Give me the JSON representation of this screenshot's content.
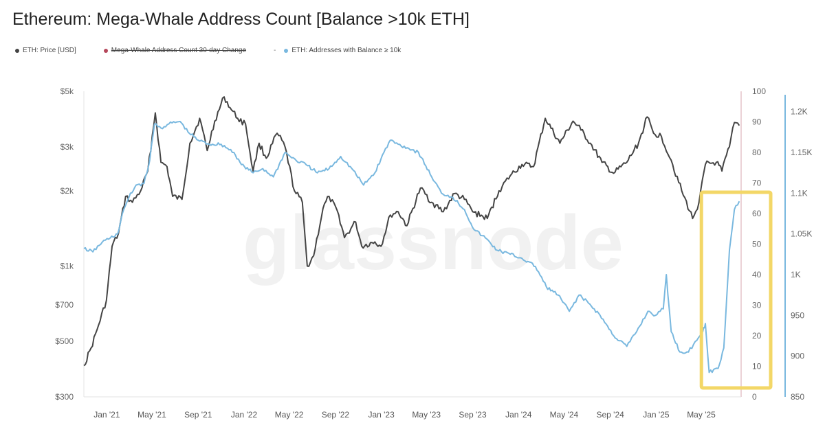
{
  "title": "Ethereum: Mega-Whale Address Count [Balance >10k ETH]",
  "legend": [
    {
      "label": "ETH: Price [USD]",
      "color": "#444444",
      "struck": false,
      "marker": "dot"
    },
    {
      "label": "Mega-Whale Address Count 30-day Change",
      "color": "#b5475b",
      "struck": true,
      "marker": "dot"
    },
    {
      "label": "ETH: Addresses with Balance ≥ 10k",
      "color": "#79b8df",
      "struck": false,
      "marker": "dash-dot"
    }
  ],
  "watermark": "glassnode",
  "chart_data": {
    "type": "line",
    "title": "Ethereum: Mega-Whale Address Count [Balance >10k ETH]",
    "x_ticks": [
      "Jan '21",
      "May '21",
      "Sep '21",
      "Jan '22",
      "May '22",
      "Sep '22",
      "Jan '23",
      "May '23",
      "Sep '23",
      "Jan '24",
      "May '24",
      "Sep '24",
      "Jan '25",
      "May '25"
    ],
    "left_axis": {
      "scale": "log",
      "ticks": [
        "$5k",
        "$3k",
        "$2k",
        "$1k",
        "$700",
        "$500",
        "$300"
      ],
      "tick_values": [
        5000,
        3000,
        2000,
        1000,
        700,
        500,
        300
      ],
      "range": [
        300,
        5000
      ]
    },
    "middle_axis": {
      "scale": "linear",
      "ticks": [
        "100",
        "90",
        "80",
        "70",
        "60",
        "50",
        "40",
        "30",
        "20",
        "10",
        "0"
      ],
      "range": [
        0,
        100
      ]
    },
    "right_axis": {
      "scale": "linear",
      "ticks": [
        "1.2K",
        "1.15K",
        "1.1K",
        "1.05K",
        "1K",
        "950",
        "900",
        "850"
      ],
      "tick_values": [
        1200,
        1150,
        1100,
        1050,
        1000,
        950,
        900,
        850
      ],
      "range": [
        850,
        1225
      ]
    },
    "x_range": [
      "2020-11-01",
      "2025-08-15"
    ],
    "series": [
      {
        "name": "ETH: Price [USD]",
        "axis": "left",
        "color": "#444444",
        "points": [
          [
            "2020-11-01",
            400
          ],
          [
            "2020-11-20",
            470
          ],
          [
            "2020-12-10",
            580
          ],
          [
            "2020-12-31",
            730
          ],
          [
            "2021-01-15",
            1200
          ],
          [
            "2021-02-01",
            1350
          ],
          [
            "2021-02-20",
            1900
          ],
          [
            "2021-03-10",
            1800
          ],
          [
            "2021-04-01",
            2000
          ],
          [
            "2021-04-20",
            2400
          ],
          [
            "2021-05-10",
            4100
          ],
          [
            "2021-05-25",
            2600
          ],
          [
            "2021-06-10",
            2500
          ],
          [
            "2021-06-25",
            1900
          ],
          [
            "2021-07-20",
            1850
          ],
          [
            "2021-08-10",
            3100
          ],
          [
            "2021-09-05",
            3900
          ],
          [
            "2021-09-25",
            2900
          ],
          [
            "2021-10-15",
            3800
          ],
          [
            "2021-11-09",
            4750
          ],
          [
            "2021-11-25",
            4300
          ],
          [
            "2021-12-15",
            3900
          ],
          [
            "2022-01-05",
            3700
          ],
          [
            "2022-01-25",
            2400
          ],
          [
            "2022-02-10",
            3100
          ],
          [
            "2022-03-01",
            2700
          ],
          [
            "2022-03-30",
            3400
          ],
          [
            "2022-04-20",
            3000
          ],
          [
            "2022-05-15",
            2000
          ],
          [
            "2022-06-05",
            1800
          ],
          [
            "2022-06-18",
            1000
          ],
          [
            "2022-07-05",
            1100
          ],
          [
            "2022-07-30",
            1700
          ],
          [
            "2022-08-15",
            1900
          ],
          [
            "2022-09-10",
            1600
          ],
          [
            "2022-09-25",
            1300
          ],
          [
            "2022-10-25",
            1500
          ],
          [
            "2022-11-10",
            1200
          ],
          [
            "2022-12-15",
            1250
          ],
          [
            "2022-12-31",
            1200
          ],
          [
            "2023-01-25",
            1600
          ],
          [
            "2023-02-15",
            1650
          ],
          [
            "2023-03-10",
            1450
          ],
          [
            "2023-04-15",
            2050
          ],
          [
            "2023-05-15",
            1800
          ],
          [
            "2023-06-15",
            1650
          ],
          [
            "2023-07-15",
            1950
          ],
          [
            "2023-08-10",
            1850
          ],
          [
            "2023-09-01",
            1650
          ],
          [
            "2023-10-10",
            1550
          ],
          [
            "2023-11-10",
            2000
          ],
          [
            "2023-12-10",
            2300
          ],
          [
            "2024-01-10",
            2550
          ],
          [
            "2024-02-10",
            2500
          ],
          [
            "2024-03-12",
            3900
          ],
          [
            "2024-04-20",
            3100
          ],
          [
            "2024-05-25",
            3800
          ],
          [
            "2024-06-15",
            3500
          ],
          [
            "2024-07-10",
            3100
          ],
          [
            "2024-08-10",
            2600
          ],
          [
            "2024-09-10",
            2350
          ],
          [
            "2024-10-15",
            2600
          ],
          [
            "2024-11-15",
            3100
          ],
          [
            "2024-12-08",
            3950
          ],
          [
            "2024-12-25",
            3400
          ],
          [
            "2025-01-15",
            3300
          ],
          [
            "2025-02-10",
            2650
          ],
          [
            "2025-03-10",
            2000
          ],
          [
            "2025-04-08",
            1550
          ],
          [
            "2025-04-25",
            1800
          ],
          [
            "2025-05-12",
            2550
          ],
          [
            "2025-06-10",
            2600
          ],
          [
            "2025-06-25",
            2400
          ],
          [
            "2025-07-15",
            3000
          ],
          [
            "2025-07-28",
            3750
          ],
          [
            "2025-08-10",
            3650
          ]
        ]
      },
      {
        "name": "ETH: Addresses with Balance ≥ 10k",
        "axis": "right",
        "color": "#79b8df",
        "points": [
          [
            "2020-11-01",
            1032
          ],
          [
            "2020-11-25",
            1028
          ],
          [
            "2020-12-20",
            1040
          ],
          [
            "2021-01-10",
            1045
          ],
          [
            "2021-01-30",
            1050
          ],
          [
            "2021-02-15",
            1080
          ],
          [
            "2021-03-01",
            1095
          ],
          [
            "2021-03-20",
            1110
          ],
          [
            "2021-04-10",
            1112
          ],
          [
            "2021-04-25",
            1140
          ],
          [
            "2021-05-08",
            1185
          ],
          [
            "2021-05-25",
            1180
          ],
          [
            "2021-06-15",
            1185
          ],
          [
            "2021-07-15",
            1188
          ],
          [
            "2021-08-05",
            1175
          ],
          [
            "2021-09-01",
            1165
          ],
          [
            "2021-10-01",
            1160
          ],
          [
            "2021-11-01",
            1160
          ],
          [
            "2021-12-05",
            1150
          ],
          [
            "2021-12-25",
            1135
          ],
          [
            "2022-01-25",
            1125
          ],
          [
            "2022-02-20",
            1130
          ],
          [
            "2022-03-20",
            1120
          ],
          [
            "2022-04-20",
            1150
          ],
          [
            "2022-05-20",
            1140
          ],
          [
            "2022-06-15",
            1135
          ],
          [
            "2022-07-15",
            1125
          ],
          [
            "2022-08-15",
            1130
          ],
          [
            "2022-09-15",
            1145
          ],
          [
            "2022-10-15",
            1130
          ],
          [
            "2022-11-15",
            1110
          ],
          [
            "2022-12-15",
            1125
          ],
          [
            "2023-01-08",
            1150
          ],
          [
            "2023-01-25",
            1165
          ],
          [
            "2023-02-15",
            1160
          ],
          [
            "2023-03-15",
            1155
          ],
          [
            "2023-04-10",
            1150
          ],
          [
            "2023-05-15",
            1120
          ],
          [
            "2023-06-10",
            1100
          ],
          [
            "2023-07-10",
            1095
          ],
          [
            "2023-08-10",
            1080
          ],
          [
            "2023-09-05",
            1055
          ],
          [
            "2023-10-05",
            1045
          ],
          [
            "2023-11-05",
            1030
          ],
          [
            "2023-12-10",
            1025
          ],
          [
            "2024-01-10",
            1020
          ],
          [
            "2024-02-15",
            1010
          ],
          [
            "2024-03-15",
            985
          ],
          [
            "2024-04-15",
            975
          ],
          [
            "2024-05-15",
            955
          ],
          [
            "2024-06-10",
            975
          ],
          [
            "2024-07-05",
            965
          ],
          [
            "2024-08-05",
            950
          ],
          [
            "2024-09-10",
            925
          ],
          [
            "2024-10-15",
            912
          ],
          [
            "2024-11-10",
            930
          ],
          [
            "2024-12-10",
            955
          ],
          [
            "2024-12-30",
            950
          ],
          [
            "2025-01-20",
            958
          ],
          [
            "2025-01-28",
            1000
          ],
          [
            "2025-02-10",
            930
          ],
          [
            "2025-03-05",
            905
          ],
          [
            "2025-03-28",
            905
          ],
          [
            "2025-04-15",
            918
          ],
          [
            "2025-05-05",
            930
          ],
          [
            "2025-05-12",
            940
          ],
          [
            "2025-05-22",
            880
          ],
          [
            "2025-06-15",
            885
          ],
          [
            "2025-06-30",
            910
          ],
          [
            "2025-07-15",
            1030
          ],
          [
            "2025-07-28",
            1080
          ],
          [
            "2025-08-10",
            1090
          ]
        ]
      }
    ],
    "highlight_box": {
      "x_start": "2025-05-05",
      "x_end": "2025-08-20",
      "description": "yellow box"
    },
    "grid": false
  }
}
